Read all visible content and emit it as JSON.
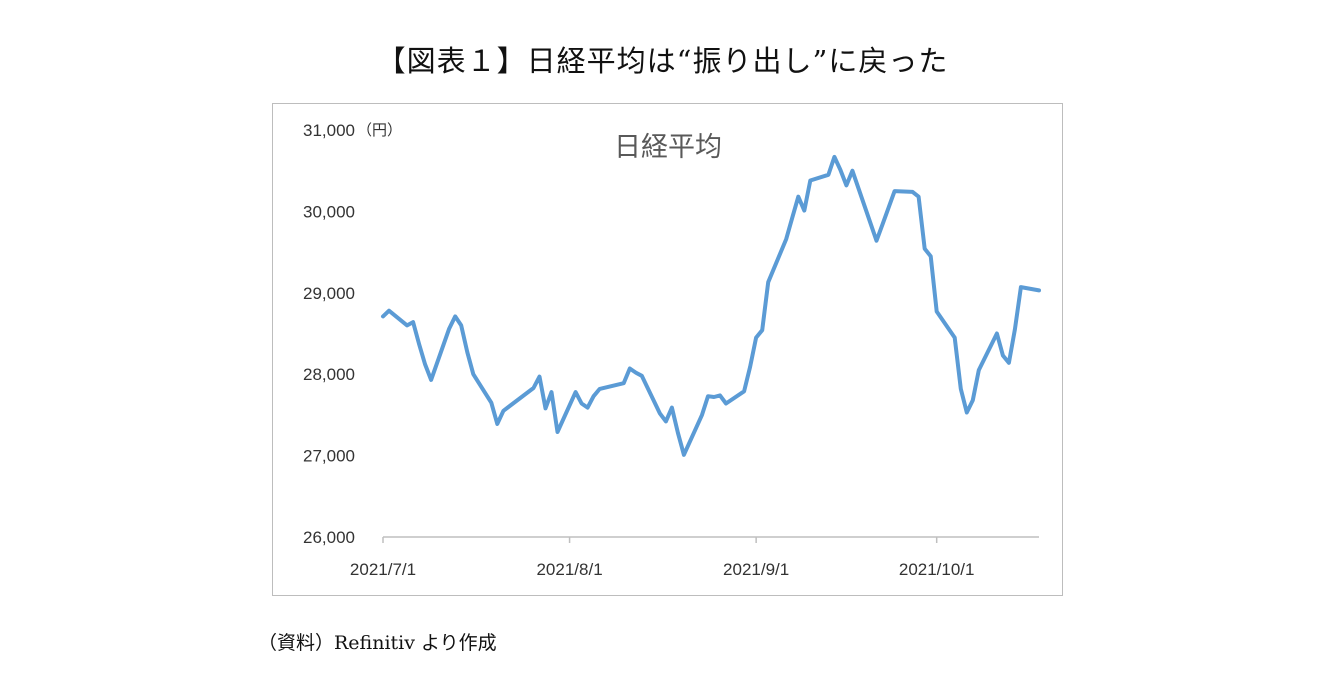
{
  "figure_title": "【図表１】日経平均は“振り出し”に戻った",
  "source_note": "（資料）Refinitiv より作成",
  "chart_data": {
    "type": "line",
    "title": "日経平均",
    "y_unit": "（円）",
    "xlabel": "",
    "ylabel": "",
    "ylim": [
      26000,
      31000
    ],
    "y_ticks": [
      26000,
      27000,
      28000,
      29000,
      30000,
      31000
    ],
    "y_tick_labels": [
      "26,000",
      "27,000",
      "28,000",
      "29,000",
      "30,000",
      "31,000"
    ],
    "x_tick_dates": [
      "2021-07-01",
      "2021-08-01",
      "2021-09-01",
      "2021-10-01"
    ],
    "x_tick_labels": [
      "2021/7/1",
      "2021/8/1",
      "2021/9/1",
      "2021/10/1"
    ],
    "xlim": [
      "2021-07-01",
      "2021-10-18"
    ],
    "grid": false,
    "legend": "none",
    "line_color": "#5b9bd5",
    "series": [
      {
        "name": "日経平均",
        "x": [
          "2021-07-01",
          "2021-07-02",
          "2021-07-05",
          "2021-07-06",
          "2021-07-07",
          "2021-07-08",
          "2021-07-09",
          "2021-07-12",
          "2021-07-13",
          "2021-07-14",
          "2021-07-15",
          "2021-07-16",
          "2021-07-19",
          "2021-07-20",
          "2021-07-21",
          "2021-07-26",
          "2021-07-27",
          "2021-07-28",
          "2021-07-29",
          "2021-07-30",
          "2021-08-02",
          "2021-08-03",
          "2021-08-04",
          "2021-08-05",
          "2021-08-06",
          "2021-08-10",
          "2021-08-11",
          "2021-08-12",
          "2021-08-13",
          "2021-08-16",
          "2021-08-17",
          "2021-08-18",
          "2021-08-19",
          "2021-08-20",
          "2021-08-23",
          "2021-08-24",
          "2021-08-25",
          "2021-08-26",
          "2021-08-27",
          "2021-08-30",
          "2021-08-31",
          "2021-09-01",
          "2021-09-02",
          "2021-09-03",
          "2021-09-06",
          "2021-09-07",
          "2021-09-08",
          "2021-09-09",
          "2021-09-10",
          "2021-09-13",
          "2021-09-14",
          "2021-09-15",
          "2021-09-16",
          "2021-09-17",
          "2021-09-21",
          "2021-09-22",
          "2021-09-24",
          "2021-09-27",
          "2021-09-28",
          "2021-09-29",
          "2021-09-30",
          "2021-10-01",
          "2021-10-04",
          "2021-10-05",
          "2021-10-06",
          "2021-10-07",
          "2021-10-08",
          "2021-10-11",
          "2021-10-12",
          "2021-10-13",
          "2021-10-14",
          "2021-10-15",
          "2021-10-18"
        ],
        "y": [
          28710,
          28780,
          28600,
          28640,
          28370,
          28120,
          27930,
          28560,
          28710,
          28600,
          28270,
          28000,
          27650,
          27390,
          27550,
          27830,
          27970,
          27580,
          27780,
          27290,
          27780,
          27640,
          27590,
          27730,
          27820,
          27890,
          28070,
          28020,
          27980,
          27520,
          27420,
          27590,
          27280,
          27010,
          27500,
          27730,
          27720,
          27740,
          27640,
          27790,
          28090,
          28450,
          28540,
          29130,
          29660,
          29920,
          30180,
          30010,
          30380,
          30450,
          30670,
          30510,
          30320,
          30500,
          29640,
          29840,
          30250,
          30240,
          30180,
          29540,
          29450,
          28770,
          28450,
          27820,
          27530,
          27680,
          28050,
          28500,
          28230,
          28140,
          28550,
          29070,
          29030
        ]
      }
    ]
  }
}
